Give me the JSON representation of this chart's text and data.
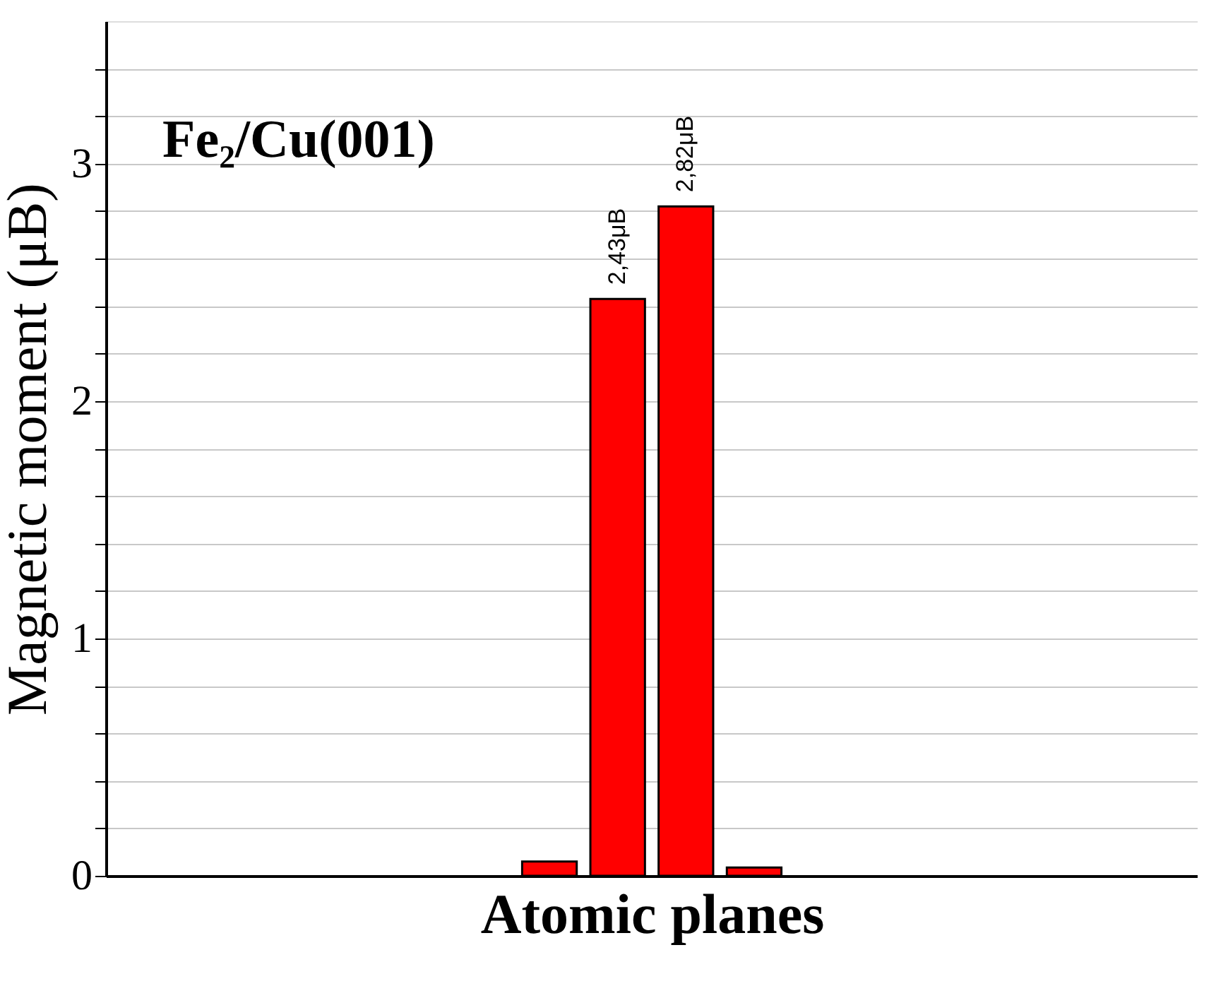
{
  "chart_data": {
    "type": "bar",
    "xlabel": "Atomic planes",
    "ylabel": "Magnetic moment (μB)",
    "annotations": [
      "Fe₂/Cu(001)"
    ],
    "categories": [
      null,
      null,
      null,
      null,
      null,
      null,
      null,
      null,
      null,
      null,
      null,
      null,
      null,
      null,
      null,
      null
    ],
    "values": [
      null,
      null,
      null,
      null,
      null,
      null,
      0.06,
      2.43,
      2.82,
      0.035,
      null,
      null,
      null,
      null,
      null,
      null
    ],
    "value_labels": [
      null,
      null,
      null,
      null,
      null,
      null,
      null,
      "2,43μB",
      "2,82μB",
      null,
      null,
      null,
      null,
      null,
      null,
      null
    ],
    "color": "#ff0000",
    "ylim": [
      0,
      3.6
    ],
    "yticks": [
      0,
      {
        "value": 0.2,
        "label": null
      },
      {
        "value": 0.4,
        "label": null
      },
      {
        "value": 0.6,
        "label": null
      },
      {
        "value": 0.8,
        "label": null
      },
      1,
      {
        "value": 1.2,
        "label": null
      },
      {
        "value": 1.4,
        "label": null
      },
      {
        "value": 1.6,
        "label": null
      },
      {
        "value": 1.8,
        "label": null
      },
      2,
      {
        "value": 2.2,
        "label": null
      },
      {
        "value": 2.4,
        "label": null
      },
      {
        "value": 2.6,
        "label": null
      },
      {
        "value": 2.8,
        "label": null
      },
      3,
      {
        "value": 3.2,
        "label": null
      },
      {
        "value": 3.4,
        "label": null
      }
    ],
    "grid": "y",
    "tick_labels": "y"
  }
}
